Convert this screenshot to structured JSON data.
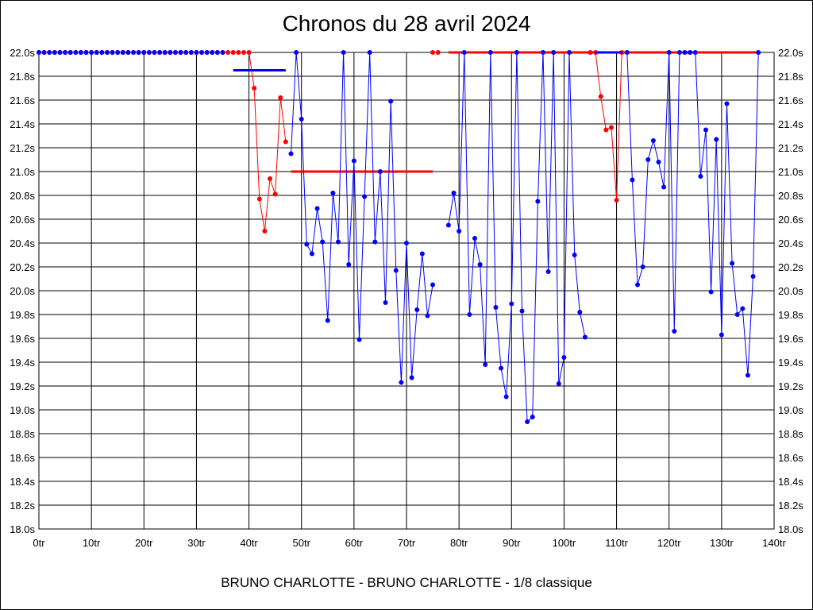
{
  "title": "Chronos du 28 avril 2024",
  "caption": "BRUNO CHARLOTTE - BRUNO CHARLOTTE - 1/8 classique",
  "chart_data": {
    "type": "line",
    "xlim": [
      0,
      140
    ],
    "ylim": [
      18.0,
      22.0
    ],
    "x_ticks": [
      "0tr",
      "10tr",
      "20tr",
      "30tr",
      "40tr",
      "50tr",
      "60tr",
      "70tr",
      "80tr",
      "90tr",
      "100tr",
      "110tr",
      "120tr",
      "130tr",
      "140tr"
    ],
    "y_ticks": [
      "18.0s",
      "18.2s",
      "18.4s",
      "18.6s",
      "18.8s",
      "19.0s",
      "19.2s",
      "19.4s",
      "19.6s",
      "19.8s",
      "20.0s",
      "20.2s",
      "20.4s",
      "20.6s",
      "20.8s",
      "21.0s",
      "21.2s",
      "21.4s",
      "21.6s",
      "21.8s",
      "22.0s"
    ],
    "grid": true,
    "series": [
      {
        "color": "#ff0000",
        "segments": [
          [
            [
              0,
              22.0
            ],
            [
              1,
              22.0
            ],
            [
              2,
              22.0
            ],
            [
              3,
              22.0
            ],
            [
              4,
              22.0
            ],
            [
              5,
              22.0
            ],
            [
              6,
              22.0
            ],
            [
              7,
              22.0
            ],
            [
              8,
              22.0
            ],
            [
              9,
              22.0
            ],
            [
              10,
              22.0
            ],
            [
              11,
              22.0
            ],
            [
              12,
              22.0
            ],
            [
              13,
              22.0
            ],
            [
              14,
              22.0
            ],
            [
              15,
              22.0
            ],
            [
              16,
              22.0
            ],
            [
              17,
              22.0
            ],
            [
              18,
              22.0
            ],
            [
              19,
              22.0
            ],
            [
              20,
              22.0
            ],
            [
              21,
              22.0
            ],
            [
              22,
              22.0
            ],
            [
              23,
              22.0
            ],
            [
              24,
              22.0
            ],
            [
              25,
              22.0
            ],
            [
              26,
              22.0
            ],
            [
              27,
              22.0
            ],
            [
              28,
              22.0
            ],
            [
              29,
              22.0
            ],
            [
              30,
              22.0
            ],
            [
              31,
              22.0
            ],
            [
              32,
              22.0
            ],
            [
              33,
              22.0
            ],
            [
              34,
              22.0
            ],
            [
              35,
              22.0
            ],
            [
              36,
              22.0
            ],
            [
              37,
              22.0
            ],
            [
              38,
              22.0
            ],
            [
              39,
              22.0
            ],
            [
              40,
              22.0
            ],
            [
              41,
              21.7
            ],
            [
              42,
              20.77
            ],
            [
              43,
              20.5
            ],
            [
              44,
              20.94
            ],
            [
              45,
              20.81
            ],
            [
              46,
              21.62
            ],
            [
              47,
              21.25
            ]
          ],
          [
            [
              75,
              22.0
            ],
            [
              76,
              22.0
            ]
          ],
          [
            [
              105,
              22.0
            ],
            [
              106,
              22.0
            ],
            [
              107,
              21.63
            ],
            [
              108,
              21.35
            ],
            [
              109,
              21.37
            ],
            [
              110,
              20.76
            ],
            [
              111,
              22.0
            ]
          ]
        ],
        "mean_lines": [
          {
            "x": [
              48,
              75
            ],
            "y": 21.0
          },
          {
            "x": [
              78,
              111
            ],
            "y": 22.0
          },
          {
            "x": [
              111,
              137
            ],
            "y": 22.0
          }
        ]
      },
      {
        "color": "#0000ff",
        "segments": [
          [
            [
              48,
              21.15
            ],
            [
              49,
              22.0
            ],
            [
              50,
              21.44
            ],
            [
              51,
              20.39
            ],
            [
              52,
              20.31
            ],
            [
              53,
              20.69
            ],
            [
              54,
              20.41
            ],
            [
              55,
              19.75
            ],
            [
              56,
              20.82
            ],
            [
              57,
              20.41
            ],
            [
              58,
              22.0
            ],
            [
              59,
              20.22
            ],
            [
              60,
              21.09
            ],
            [
              61,
              19.59
            ],
            [
              62,
              20.79
            ],
            [
              63,
              22.0
            ],
            [
              64,
              20.41
            ],
            [
              65,
              21.0
            ],
            [
              66,
              19.9
            ],
            [
              67,
              21.59
            ],
            [
              68,
              20.17
            ],
            [
              69,
              19.23
            ],
            [
              70,
              20.4
            ],
            [
              71,
              19.27
            ],
            [
              72,
              19.84
            ],
            [
              73,
              20.31
            ],
            [
              74,
              19.79
            ],
            [
              75,
              20.05
            ]
          ],
          [
            [
              78,
              20.55
            ],
            [
              79,
              20.82
            ],
            [
              80,
              20.5
            ],
            [
              81,
              22.0
            ],
            [
              82,
              19.8
            ],
            [
              83,
              20.44
            ],
            [
              84,
              20.22
            ],
            [
              85,
              19.38
            ],
            [
              86,
              22.0
            ],
            [
              87,
              19.86
            ],
            [
              88,
              19.35
            ],
            [
              89,
              19.11
            ],
            [
              90,
              19.89
            ],
            [
              91,
              22.0
            ],
            [
              92,
              19.83
            ],
            [
              93,
              18.9
            ],
            [
              94,
              18.94
            ],
            [
              95,
              20.75
            ],
            [
              96,
              22.0
            ],
            [
              97,
              20.16
            ],
            [
              98,
              22.0
            ],
            [
              99,
              19.22
            ],
            [
              100,
              19.44
            ],
            [
              101,
              22.0
            ],
            [
              102,
              20.3
            ],
            [
              103,
              19.82
            ],
            [
              104,
              19.61
            ]
          ],
          [
            [
              112,
              22.0
            ],
            [
              113,
              20.93
            ],
            [
              114,
              20.05
            ],
            [
              115,
              20.2
            ],
            [
              116,
              21.1
            ],
            [
              117,
              21.26
            ],
            [
              118,
              21.08
            ],
            [
              119,
              20.87
            ],
            [
              120,
              22.0
            ],
            [
              121,
              19.66
            ],
            [
              122,
              22.0
            ],
            [
              123,
              22.0
            ],
            [
              124,
              22.0
            ],
            [
              125,
              22.0
            ],
            [
              126,
              20.96
            ],
            [
              127,
              21.35
            ],
            [
              128,
              19.99
            ],
            [
              129,
              21.27
            ],
            [
              130,
              19.63
            ],
            [
              131,
              21.57
            ],
            [
              132,
              20.23
            ],
            [
              133,
              19.8
            ],
            [
              134,
              19.85
            ],
            [
              135,
              19.29
            ],
            [
              136,
              20.12
            ],
            [
              137,
              22.0
            ]
          ]
        ],
        "extra_points": [
          [
            0,
            22.0
          ],
          [
            1,
            22.0
          ],
          [
            2,
            22.0
          ],
          [
            3,
            22.0
          ],
          [
            4,
            22.0
          ],
          [
            5,
            22.0
          ],
          [
            6,
            22.0
          ],
          [
            7,
            22.0
          ],
          [
            8,
            22.0
          ],
          [
            9,
            22.0
          ],
          [
            10,
            22.0
          ],
          [
            11,
            22.0
          ],
          [
            12,
            22.0
          ],
          [
            13,
            22.0
          ],
          [
            14,
            22.0
          ],
          [
            15,
            22.0
          ],
          [
            16,
            22.0
          ],
          [
            17,
            22.0
          ],
          [
            18,
            22.0
          ],
          [
            19,
            22.0
          ],
          [
            20,
            22.0
          ],
          [
            21,
            22.0
          ],
          [
            22,
            22.0
          ],
          [
            23,
            22.0
          ],
          [
            24,
            22.0
          ],
          [
            25,
            22.0
          ],
          [
            26,
            22.0
          ],
          [
            27,
            22.0
          ],
          [
            28,
            22.0
          ],
          [
            29,
            22.0
          ],
          [
            30,
            22.0
          ],
          [
            31,
            22.0
          ],
          [
            32,
            22.0
          ],
          [
            33,
            22.0
          ],
          [
            34,
            22.0
          ],
          [
            35,
            22.0
          ]
        ],
        "mean_lines": [
          {
            "x": [
              37,
              47
            ],
            "y": 21.85
          },
          {
            "x": [
              106,
              111
            ],
            "y": 22.0
          }
        ]
      }
    ]
  }
}
